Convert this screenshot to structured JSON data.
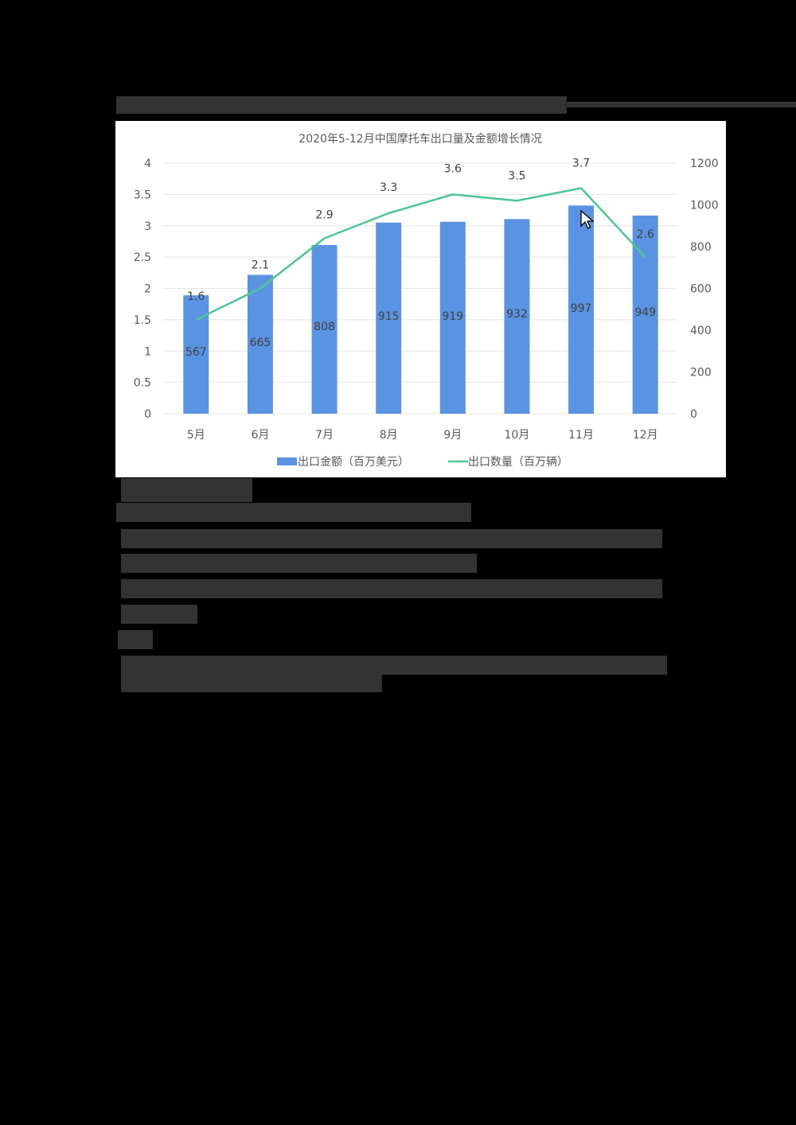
{
  "page": {
    "background": "#000000",
    "redacted_text_color": "#333333"
  },
  "chart_data": {
    "type": "bar+line",
    "title": "2020年5-12月中国摩托车出口量及金额增长情况",
    "categories": [
      "5月",
      "6月",
      "7月",
      "8月",
      "9月",
      "10月",
      "11月",
      "12月"
    ],
    "series": [
      {
        "name": "出口金额（百万美元）",
        "type": "bar",
        "axis": "right",
        "color": "#5B93E3",
        "values": [
          567,
          665,
          808,
          915,
          919,
          932,
          997,
          949
        ],
        "labels": [
          "567",
          "665",
          "808",
          "915",
          "919",
          "932",
          "997",
          "949"
        ]
      },
      {
        "name": "出口数量（百万辆）",
        "type": "line",
        "axis": "left",
        "color": "#4CC594",
        "values": [
          1.6,
          2.1,
          2.9,
          3.3,
          3.6,
          3.5,
          3.7,
          2.6
        ],
        "labels": [
          "1.6",
          "2.1",
          "2.9",
          "3.3",
          "3.6",
          "3.5",
          "3.7",
          "2.6"
        ]
      }
    ],
    "left_axis": {
      "min": 0,
      "max": 4,
      "ticks": [
        "0",
        "0.5",
        "1",
        "1.5",
        "2",
        "2.5",
        "3",
        "3.5",
        "4"
      ]
    },
    "right_axis": {
      "min": 0,
      "max": 1200,
      "ticks": [
        "0",
        "200",
        "400",
        "600",
        "800",
        "1000",
        "1200"
      ]
    },
    "xlabel": "",
    "ylabel": "",
    "grid": true,
    "legend_position": "bottom",
    "legend": [
      "出口金额（百万美元）",
      "出口数量（百万辆）"
    ]
  }
}
